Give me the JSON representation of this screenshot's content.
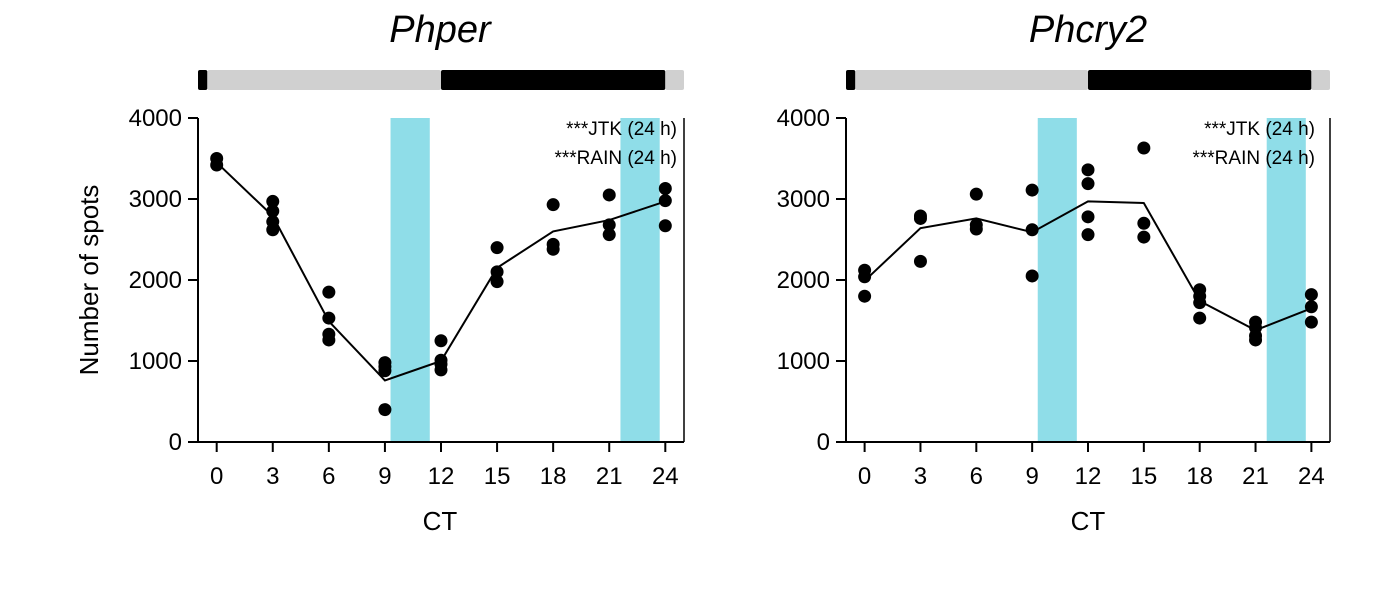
{
  "chart_data": [
    {
      "type": "scatter",
      "title": "Phper",
      "xlabel": "CT",
      "ylabel": "Number of spots",
      "xlim": [
        -1,
        25
      ],
      "ylim": [
        0,
        4000
      ],
      "xticks": [
        0,
        3,
        6,
        9,
        12,
        15,
        18,
        21,
        24
      ],
      "yticks": [
        0,
        1000,
        2000,
        3000,
        4000
      ],
      "annotations": [
        "***JTK (24 h)",
        "***RAIN (24 h)"
      ],
      "photoperiod_bar": [
        {
          "from": -1,
          "to": -0.5,
          "state": "dark"
        },
        {
          "from": -0.5,
          "to": 12,
          "state": "light"
        },
        {
          "from": 12,
          "to": 24,
          "state": "dark"
        },
        {
          "from": 24,
          "to": 25,
          "state": "light"
        }
      ],
      "highlights": [
        {
          "from": 9.3,
          "to": 11.4,
          "color": "#8fdde8"
        },
        {
          "from": 21.6,
          "to": 23.7,
          "color": "#8fdde8"
        }
      ],
      "points": [
        {
          "x": 0,
          "y": 3500
        },
        {
          "x": 0,
          "y": 3420
        },
        {
          "x": 3,
          "y": 2970
        },
        {
          "x": 3,
          "y": 2850
        },
        {
          "x": 3,
          "y": 2720
        },
        {
          "x": 3,
          "y": 2620
        },
        {
          "x": 6,
          "y": 1850
        },
        {
          "x": 6,
          "y": 1530
        },
        {
          "x": 6,
          "y": 1330
        },
        {
          "x": 6,
          "y": 1260
        },
        {
          "x": 9,
          "y": 980
        },
        {
          "x": 9,
          "y": 930
        },
        {
          "x": 9,
          "y": 880
        },
        {
          "x": 9,
          "y": 400
        },
        {
          "x": 12,
          "y": 1250
        },
        {
          "x": 12,
          "y": 1010
        },
        {
          "x": 12,
          "y": 960
        },
        {
          "x": 12,
          "y": 890
        },
        {
          "x": 15,
          "y": 2400
        },
        {
          "x": 15,
          "y": 2100
        },
        {
          "x": 15,
          "y": 1980
        },
        {
          "x": 18,
          "y": 2930
        },
        {
          "x": 18,
          "y": 2440
        },
        {
          "x": 18,
          "y": 2380
        },
        {
          "x": 21,
          "y": 3050
        },
        {
          "x": 21,
          "y": 2680
        },
        {
          "x": 21,
          "y": 2560
        },
        {
          "x": 24,
          "y": 3130
        },
        {
          "x": 24,
          "y": 2980
        },
        {
          "x": 24,
          "y": 2670
        }
      ],
      "mean_line": {
        "x": [
          0,
          3,
          6,
          9,
          12,
          15,
          18,
          21,
          24
        ],
        "y": [
          3450,
          2790,
          1490,
          760,
          1000,
          2150,
          2600,
          2740,
          2970
        ]
      },
      "colors": {
        "points": "#000000",
        "line": "#000000",
        "light": "#d0d0d0",
        "dark": "#000000"
      }
    },
    {
      "type": "scatter",
      "title": "Phcry2",
      "xlabel": "CT",
      "ylabel": "",
      "xlim": [
        -1,
        25
      ],
      "ylim": [
        0,
        4000
      ],
      "xticks": [
        0,
        3,
        6,
        9,
        12,
        15,
        18,
        21,
        24
      ],
      "yticks": [
        0,
        1000,
        2000,
        3000,
        4000
      ],
      "annotations": [
        "***JTK (24 h)",
        "***RAIN (24 h)"
      ],
      "photoperiod_bar": [
        {
          "from": -1,
          "to": -0.5,
          "state": "dark"
        },
        {
          "from": -0.5,
          "to": 12,
          "state": "light"
        },
        {
          "from": 12,
          "to": 24,
          "state": "dark"
        },
        {
          "from": 24,
          "to": 25,
          "state": "light"
        }
      ],
      "highlights": [
        {
          "from": 9.3,
          "to": 11.4,
          "color": "#8fdde8"
        },
        {
          "from": 21.6,
          "to": 23.7,
          "color": "#8fdde8"
        }
      ],
      "points": [
        {
          "x": 0,
          "y": 2120
        },
        {
          "x": 0,
          "y": 2040
        },
        {
          "x": 0,
          "y": 1800
        },
        {
          "x": 3,
          "y": 2790
        },
        {
          "x": 3,
          "y": 2760
        },
        {
          "x": 3,
          "y": 2230
        },
        {
          "x": 6,
          "y": 3060
        },
        {
          "x": 6,
          "y": 2680
        },
        {
          "x": 6,
          "y": 2630
        },
        {
          "x": 9,
          "y": 3110
        },
        {
          "x": 9,
          "y": 2620
        },
        {
          "x": 9,
          "y": 2050
        },
        {
          "x": 12,
          "y": 3360
        },
        {
          "x": 12,
          "y": 3190
        },
        {
          "x": 12,
          "y": 2780
        },
        {
          "x": 12,
          "y": 2560
        },
        {
          "x": 15,
          "y": 3630
        },
        {
          "x": 15,
          "y": 2700
        },
        {
          "x": 15,
          "y": 2530
        },
        {
          "x": 18,
          "y": 1880
        },
        {
          "x": 18,
          "y": 1800
        },
        {
          "x": 18,
          "y": 1720
        },
        {
          "x": 18,
          "y": 1530
        },
        {
          "x": 21,
          "y": 1480
        },
        {
          "x": 21,
          "y": 1410
        },
        {
          "x": 21,
          "y": 1310
        },
        {
          "x": 21,
          "y": 1260
        },
        {
          "x": 24,
          "y": 1820
        },
        {
          "x": 24,
          "y": 1670
        },
        {
          "x": 24,
          "y": 1480
        }
      ],
      "mean_line": {
        "x": [
          0,
          3,
          6,
          9,
          12,
          15,
          18,
          21,
          24
        ],
        "y": [
          1990,
          2640,
          2760,
          2590,
          2970,
          2950,
          1740,
          1380,
          1650
        ]
      },
      "colors": {
        "points": "#000000",
        "line": "#000000",
        "light": "#d0d0d0",
        "dark": "#000000"
      }
    }
  ]
}
